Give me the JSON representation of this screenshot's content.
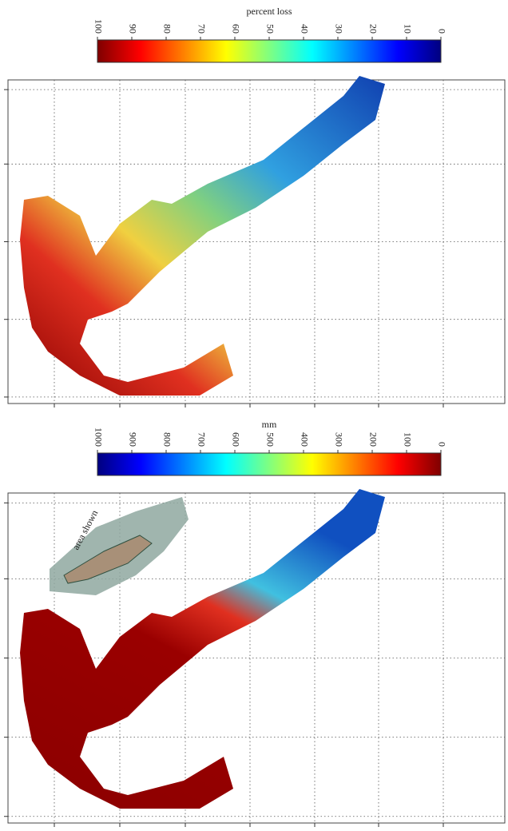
{
  "panels": [
    {
      "colorbar": {
        "label": "percent loss",
        "range": [
          100,
          0
        ],
        "ticks": [
          100,
          90,
          80,
          70,
          60,
          50,
          40,
          30,
          20,
          10,
          0
        ],
        "colors": [
          "#7f0000",
          "#ff0000",
          "#ff8000",
          "#ffff00",
          "#80ff80",
          "#00ffff",
          "#0080ff",
          "#0000ff",
          "#00007f"
        ]
      }
    },
    {
      "colorbar": {
        "label": "mm",
        "range": [
          1000,
          0
        ],
        "ticks": [
          1000,
          900,
          800,
          700,
          600,
          500,
          400,
          300,
          200,
          100,
          0
        ],
        "colors": [
          "#00007f",
          "#0000ff",
          "#0080ff",
          "#00ffff",
          "#80ff80",
          "#ffff00",
          "#ff8000",
          "#ff0000",
          "#7f0000"
        ]
      },
      "inset_label": "area shown"
    }
  ]
}
